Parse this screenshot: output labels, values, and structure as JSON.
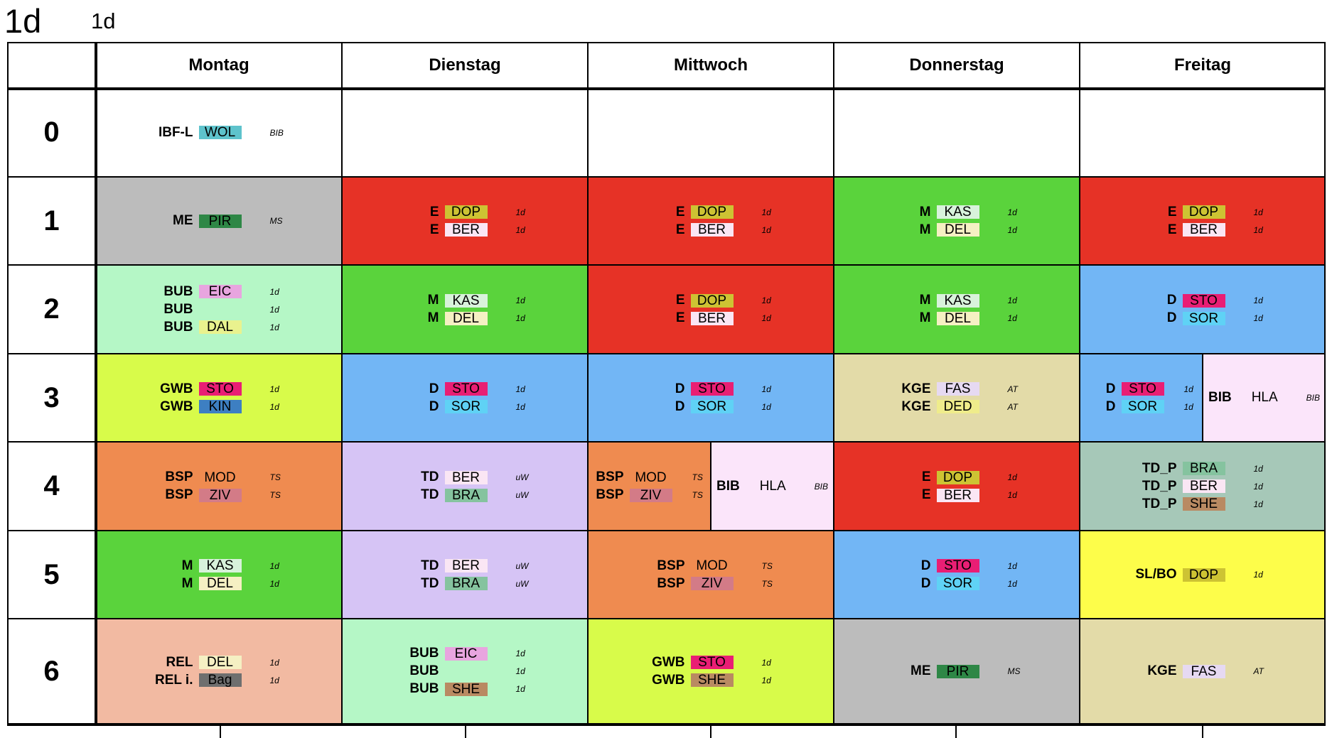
{
  "title": {
    "class_name": "1d",
    "sub": "1d"
  },
  "days": [
    "Montag",
    "Dienstag",
    "Mittwoch",
    "Donnerstag",
    "Freitag"
  ],
  "periods": [
    "0",
    "1",
    "2",
    "3",
    "4",
    "5",
    "6"
  ],
  "colors": {
    "white": "#ffffff",
    "gray": "#bcbcbc",
    "red": "#e63226",
    "green": "#5ad33c",
    "mint": "#b5f7c6",
    "lime": "#d8fb4a",
    "blue": "#72b6f5",
    "khaki": "#e3dba8",
    "lilac": "#d6c4f5",
    "orange": "#ef8b50",
    "pink": "#fbe5fa",
    "sage": "#a6c8b8",
    "yellow": "#fdfd4a",
    "salmon": "#f2baa2"
  },
  "teacher_colors": {
    "WOL": "#5ec3cc",
    "PIR": "#2e8746",
    "DOP": "#cdc333",
    "BER": "#fae6f4",
    "KAS": "#d8f2db",
    "DEL": "#f5f0c3",
    "EIC": "#e8a5df",
    "DAL": "#e9f28e",
    "STO": "#e91e74",
    "SOR": "#5fd2f5",
    "KIN": "#3d7fc2",
    "FAS": "#e6d9f2",
    "DED": "#efec8b",
    "ZIV": "#d37b87",
    "BRA": "#85c39f",
    "SHE": "#b98a62",
    "Bag": "#6f6f6f"
  },
  "schedule": [
    [
      {
        "color": "white",
        "lessons": [
          {
            "subject": "IBF-L",
            "teacher": "WOL",
            "room": "BIB"
          }
        ]
      },
      {
        "color": "white",
        "lessons": []
      },
      {
        "color": "white",
        "lessons": []
      },
      {
        "color": "white",
        "lessons": []
      },
      {
        "color": "white",
        "lessons": []
      }
    ],
    [
      {
        "color": "gray",
        "lessons": [
          {
            "subject": "ME",
            "teacher": "PIR",
            "room": "MS"
          }
        ]
      },
      {
        "color": "red",
        "lessons": [
          {
            "subject": "E",
            "teacher": "DOP",
            "room": "1d"
          },
          {
            "subject": "E",
            "teacher": "BER",
            "room": "1d"
          }
        ]
      },
      {
        "color": "red",
        "lessons": [
          {
            "subject": "E",
            "teacher": "DOP",
            "room": "1d"
          },
          {
            "subject": "E",
            "teacher": "BER",
            "room": "1d"
          }
        ]
      },
      {
        "color": "green",
        "lessons": [
          {
            "subject": "M",
            "teacher": "KAS",
            "room": "1d"
          },
          {
            "subject": "M",
            "teacher": "DEL",
            "room": "1d"
          }
        ]
      },
      {
        "color": "red",
        "lessons": [
          {
            "subject": "E",
            "teacher": "DOP",
            "room": "1d"
          },
          {
            "subject": "E",
            "teacher": "BER",
            "room": "1d"
          }
        ]
      }
    ],
    [
      {
        "color": "mint",
        "lessons": [
          {
            "subject": "BUB",
            "teacher": "EIC",
            "room": "1d"
          },
          {
            "subject": "BUB",
            "teacher": "",
            "room": "1d"
          },
          {
            "subject": "BUB",
            "teacher": "DAL",
            "room": "1d"
          }
        ]
      },
      {
        "color": "green",
        "lessons": [
          {
            "subject": "M",
            "teacher": "KAS",
            "room": "1d"
          },
          {
            "subject": "M",
            "teacher": "DEL",
            "room": "1d"
          }
        ]
      },
      {
        "color": "red",
        "lessons": [
          {
            "subject": "E",
            "teacher": "DOP",
            "room": "1d"
          },
          {
            "subject": "E",
            "teacher": "BER",
            "room": "1d"
          }
        ]
      },
      {
        "color": "green",
        "lessons": [
          {
            "subject": "M",
            "teacher": "KAS",
            "room": "1d"
          },
          {
            "subject": "M",
            "teacher": "DEL",
            "room": "1d"
          }
        ]
      },
      {
        "color": "blue",
        "lessons": [
          {
            "subject": "D",
            "teacher": "STO",
            "room": "1d"
          },
          {
            "subject": "D",
            "teacher": "SOR",
            "room": "1d"
          }
        ]
      }
    ],
    [
      {
        "color": "lime",
        "lessons": [
          {
            "subject": "GWB",
            "teacher": "STO",
            "room": "1d"
          },
          {
            "subject": "GWB",
            "teacher": "KIN",
            "room": "1d"
          }
        ]
      },
      {
        "color": "blue",
        "lessons": [
          {
            "subject": "D",
            "teacher": "STO",
            "room": "1d"
          },
          {
            "subject": "D",
            "teacher": "SOR",
            "room": "1d"
          }
        ]
      },
      {
        "color": "blue",
        "lessons": [
          {
            "subject": "D",
            "teacher": "STO",
            "room": "1d"
          },
          {
            "subject": "D",
            "teacher": "SOR",
            "room": "1d"
          }
        ]
      },
      {
        "color": "khaki",
        "lessons": [
          {
            "subject": "KGE",
            "teacher": "FAS",
            "room": "AT"
          },
          {
            "subject": "KGE",
            "teacher": "DED",
            "room": "AT"
          }
        ]
      },
      {
        "split": true,
        "left": {
          "color": "blue",
          "lessons": [
            {
              "subject": "D",
              "teacher": "STO",
              "room": "1d"
            },
            {
              "subject": "D",
              "teacher": "SOR",
              "room": "1d"
            }
          ]
        },
        "right": {
          "color": "pink",
          "subject": "BIB",
          "teacher": "HLA",
          "room": "BIB"
        }
      }
    ],
    [
      {
        "color": "orange",
        "lessons": [
          {
            "subject": "BSP",
            "teacher": "MOD",
            "room": "TS"
          },
          {
            "subject": "BSP",
            "teacher": "ZIV",
            "room": "TS"
          }
        ]
      },
      {
        "color": "lilac",
        "lessons": [
          {
            "subject": "TD",
            "teacher": "BER",
            "room": "uW"
          },
          {
            "subject": "TD",
            "teacher": "BRA",
            "room": "uW"
          }
        ]
      },
      {
        "split": true,
        "left": {
          "color": "orange",
          "lessons": [
            {
              "subject": "BSP",
              "teacher": "MOD",
              "room": "TS"
            },
            {
              "subject": "BSP",
              "teacher": "ZIV",
              "room": "TS"
            }
          ]
        },
        "right": {
          "color": "pink",
          "subject": "BIB",
          "teacher": "HLA",
          "room": "BIB"
        }
      },
      {
        "color": "red",
        "lessons": [
          {
            "subject": "E",
            "teacher": "DOP",
            "room": "1d"
          },
          {
            "subject": "E",
            "teacher": "BER",
            "room": "1d"
          }
        ]
      },
      {
        "color": "sage",
        "lessons": [
          {
            "subject": "TD_P",
            "teacher": "BRA",
            "room": "1d"
          },
          {
            "subject": "TD_P",
            "teacher": "BER",
            "room": "1d"
          },
          {
            "subject": "TD_P",
            "teacher": "SHE",
            "room": "1d"
          }
        ]
      }
    ],
    [
      {
        "color": "green",
        "lessons": [
          {
            "subject": "M",
            "teacher": "KAS",
            "room": "1d"
          },
          {
            "subject": "M",
            "teacher": "DEL",
            "room": "1d"
          }
        ]
      },
      {
        "color": "lilac",
        "lessons": [
          {
            "subject": "TD",
            "teacher": "BER",
            "room": "uW"
          },
          {
            "subject": "TD",
            "teacher": "BRA",
            "room": "uW"
          }
        ]
      },
      {
        "color": "orange",
        "lessons": [
          {
            "subject": "BSP",
            "teacher": "MOD",
            "room": "TS"
          },
          {
            "subject": "BSP",
            "teacher": "ZIV",
            "room": "TS"
          }
        ]
      },
      {
        "color": "blue",
        "lessons": [
          {
            "subject": "D",
            "teacher": "STO",
            "room": "1d"
          },
          {
            "subject": "D",
            "teacher": "SOR",
            "room": "1d"
          }
        ]
      },
      {
        "color": "yellow",
        "lessons": [
          {
            "subject": "SL/BO",
            "teacher": "DOP",
            "room": "1d"
          }
        ]
      }
    ],
    [
      {
        "color": "salmon",
        "lessons": [
          {
            "subject": "REL",
            "teacher": "DEL",
            "room": "1d"
          },
          {
            "subject": "REL i.",
            "teacher": "Bag",
            "room": "1d"
          }
        ]
      },
      {
        "color": "mint",
        "lessons": [
          {
            "subject": "BUB",
            "teacher": "EIC",
            "room": "1d"
          },
          {
            "subject": "BUB",
            "teacher": "",
            "room": "1d"
          },
          {
            "subject": "BUB",
            "teacher": "SHE",
            "room": "1d"
          }
        ]
      },
      {
        "color": "lime",
        "lessons": [
          {
            "subject": "GWB",
            "teacher": "STO",
            "room": "1d"
          },
          {
            "subject": "GWB",
            "teacher": "SHE",
            "room": "1d"
          }
        ]
      },
      {
        "color": "gray",
        "lessons": [
          {
            "subject": "ME",
            "teacher": "PIR",
            "room": "MS"
          }
        ]
      },
      {
        "color": "khaki",
        "lessons": [
          {
            "subject": "KGE",
            "teacher": "FAS",
            "room": "AT"
          }
        ]
      }
    ]
  ]
}
